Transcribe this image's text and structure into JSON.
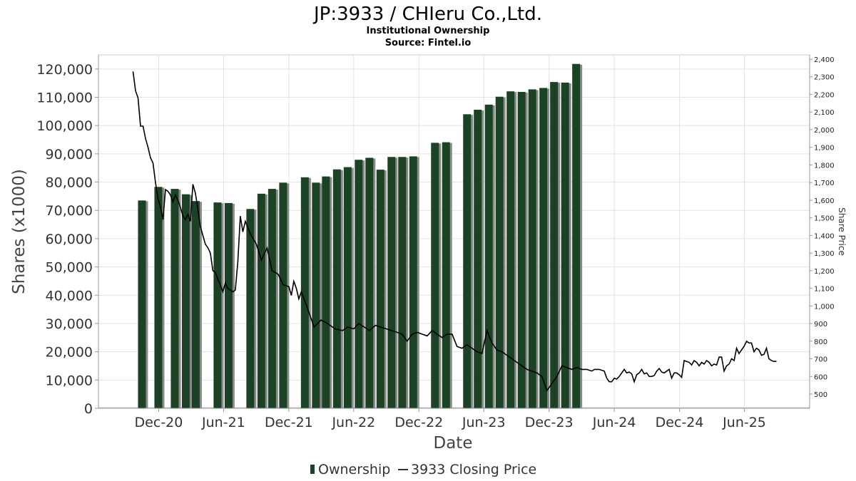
{
  "chart_data": {
    "type": "bar",
    "title": "JP:3933 / CHIeru Co.,Ltd.",
    "subtitle_lines": [
      "Institutional Ownership",
      "Source: Fintel.io"
    ],
    "xlabel": "Date",
    "ylabel": "Shares (x1000)",
    "y2label": "Share Price",
    "ylim": [
      0,
      125000
    ],
    "y2lim": [
      450,
      2400
    ],
    "grid": true,
    "legend_placement": "bottom-center",
    "x_ticks": [
      "Dec-20",
      "Jun-21",
      "Dec-21",
      "Jun-22",
      "Dec-22",
      "Jun-23",
      "Dec-23",
      "Jun-24",
      "Dec-24",
      "Jun-25"
    ],
    "y_ticks": [
      "0",
      "10,000",
      "20,000",
      "30,000",
      "40,000",
      "50,000",
      "60,000",
      "70,000",
      "80,000",
      "90,000",
      "100,000",
      "110,000",
      "120,000"
    ],
    "y2_ticks": [
      "500",
      "600",
      "700",
      "800",
      "900",
      "1,000",
      "1,100",
      "1,200",
      "1,300",
      "1,400",
      "1,500",
      "1,600",
      "1,700",
      "1,800",
      "1,900",
      "2,000",
      "2,100",
      "2,200",
      "2,300",
      "2,400"
    ],
    "series": [
      {
        "name": "Ownership",
        "type": "bar",
        "color": "#1c4226",
        "points": [
          {
            "x": "2020-10-15",
            "y": 73500
          },
          {
            "x": "2020-11-30",
            "y": 78300
          },
          {
            "x": "2021-01-15",
            "y": 77600
          },
          {
            "x": "2021-02-15",
            "y": 75700
          },
          {
            "x": "2021-03-15",
            "y": 73300
          },
          {
            "x": "2021-05-15",
            "y": 72800
          },
          {
            "x": "2021-06-15",
            "y": 72600
          },
          {
            "x": "2021-08-15",
            "y": 70500
          },
          {
            "x": "2021-09-15",
            "y": 75900
          },
          {
            "x": "2021-10-15",
            "y": 77600
          },
          {
            "x": "2021-11-15",
            "y": 79800
          },
          {
            "x": "2022-01-15",
            "y": 81700
          },
          {
            "x": "2022-02-15",
            "y": 79800
          },
          {
            "x": "2022-03-15",
            "y": 82000
          },
          {
            "x": "2022-04-15",
            "y": 84500
          },
          {
            "x": "2022-05-15",
            "y": 85300
          },
          {
            "x": "2022-06-15",
            "y": 87900
          },
          {
            "x": "2022-07-15",
            "y": 88600
          },
          {
            "x": "2022-08-15",
            "y": 84400
          },
          {
            "x": "2022-09-15",
            "y": 88900
          },
          {
            "x": "2022-10-15",
            "y": 88900
          },
          {
            "x": "2022-11-15",
            "y": 89100
          },
          {
            "x": "2023-01-15",
            "y": 93900
          },
          {
            "x": "2023-02-15",
            "y": 94100
          },
          {
            "x": "2023-04-15",
            "y": 104000
          },
          {
            "x": "2023-05-15",
            "y": 105600
          },
          {
            "x": "2023-06-15",
            "y": 107400
          },
          {
            "x": "2023-07-15",
            "y": 110200
          },
          {
            "x": "2023-08-15",
            "y": 112100
          },
          {
            "x": "2023-09-15",
            "y": 111900
          },
          {
            "x": "2023-10-15",
            "y": 112800
          },
          {
            "x": "2023-11-15",
            "y": 113300
          },
          {
            "x": "2023-12-15",
            "y": 115400
          },
          {
            "x": "2024-01-15",
            "y": 115200
          },
          {
            "x": "2024-02-15",
            "y": 121800
          }
        ]
      },
      {
        "name": "3933 Closing Price",
        "type": "line",
        "color": "#000000",
        "points": [
          {
            "x": "2020-09-20",
            "y": 2330
          },
          {
            "x": "2020-09-27",
            "y": 2220
          },
          {
            "x": "2020-10-04",
            "y": 2180
          },
          {
            "x": "2020-10-11",
            "y": 2020
          },
          {
            "x": "2020-10-18",
            "y": 2020
          },
          {
            "x": "2020-10-25",
            "y": 1950
          },
          {
            "x": "2020-11-01",
            "y": 1900
          },
          {
            "x": "2020-11-08",
            "y": 1840
          },
          {
            "x": "2020-11-15",
            "y": 1810
          },
          {
            "x": "2020-11-22",
            "y": 1700
          },
          {
            "x": "2020-11-29",
            "y": 1610
          },
          {
            "x": "2020-12-06",
            "y": 1560
          },
          {
            "x": "2020-12-13",
            "y": 1490
          },
          {
            "x": "2020-12-20",
            "y": 1660
          },
          {
            "x": "2020-12-27",
            "y": 1650
          },
          {
            "x": "2021-01-03",
            "y": 1630
          },
          {
            "x": "2021-01-10",
            "y": 1590
          },
          {
            "x": "2021-01-17",
            "y": 1630
          },
          {
            "x": "2021-01-24",
            "y": 1600
          },
          {
            "x": "2021-01-31",
            "y": 1560
          },
          {
            "x": "2021-02-07",
            "y": 1510
          },
          {
            "x": "2021-02-14",
            "y": 1490
          },
          {
            "x": "2021-02-21",
            "y": 1520
          },
          {
            "x": "2021-02-28",
            "y": 1480
          },
          {
            "x": "2021-03-07",
            "y": 1690
          },
          {
            "x": "2021-03-14",
            "y": 1640
          },
          {
            "x": "2021-03-21",
            "y": 1550
          },
          {
            "x": "2021-03-28",
            "y": 1450
          },
          {
            "x": "2021-04-04",
            "y": 1400
          },
          {
            "x": "2021-04-11",
            "y": 1350
          },
          {
            "x": "2021-04-18",
            "y": 1330
          },
          {
            "x": "2021-04-25",
            "y": 1300
          },
          {
            "x": "2021-05-02",
            "y": 1200
          },
          {
            "x": "2021-05-09",
            "y": 1190
          },
          {
            "x": "2021-05-16",
            "y": 1150
          },
          {
            "x": "2021-05-23",
            "y": 1120
          },
          {
            "x": "2021-05-30",
            "y": 1080
          },
          {
            "x": "2021-06-06",
            "y": 1130
          },
          {
            "x": "2021-06-13",
            "y": 1100
          },
          {
            "x": "2021-06-20",
            "y": 1090
          },
          {
            "x": "2021-06-27",
            "y": 1080
          },
          {
            "x": "2021-07-04",
            "y": 1090
          },
          {
            "x": "2021-07-11",
            "y": 1250
          },
          {
            "x": "2021-07-18",
            "y": 1510
          },
          {
            "x": "2021-07-25",
            "y": 1420
          },
          {
            "x": "2021-08-01",
            "y": 1480
          },
          {
            "x": "2021-08-15",
            "y": 1410
          },
          {
            "x": "2021-09-01",
            "y": 1350
          },
          {
            "x": "2021-09-15",
            "y": 1260
          },
          {
            "x": "2021-10-01",
            "y": 1330
          },
          {
            "x": "2021-10-15",
            "y": 1200
          },
          {
            "x": "2021-11-01",
            "y": 1180
          },
          {
            "x": "2021-11-15",
            "y": 1120
          },
          {
            "x": "2021-12-01",
            "y": 1110
          },
          {
            "x": "2021-12-08",
            "y": 1060
          },
          {
            "x": "2021-12-15",
            "y": 1140
          },
          {
            "x": "2021-12-22",
            "y": 1100
          },
          {
            "x": "2021-12-29",
            "y": 1040
          },
          {
            "x": "2022-01-05",
            "y": 1080
          },
          {
            "x": "2022-01-20",
            "y": 1000
          },
          {
            "x": "2022-02-10",
            "y": 880
          },
          {
            "x": "2022-03-01",
            "y": 920
          },
          {
            "x": "2022-03-20",
            "y": 900
          },
          {
            "x": "2022-04-10",
            "y": 870
          },
          {
            "x": "2022-05-01",
            "y": 860
          },
          {
            "x": "2022-05-15",
            "y": 880
          },
          {
            "x": "2022-06-01",
            "y": 870
          },
          {
            "x": "2022-06-15",
            "y": 900
          },
          {
            "x": "2022-07-01",
            "y": 880
          },
          {
            "x": "2022-07-15",
            "y": 860
          },
          {
            "x": "2022-08-01",
            "y": 890
          },
          {
            "x": "2022-08-15",
            "y": 880
          },
          {
            "x": "2022-09-01",
            "y": 870
          },
          {
            "x": "2022-09-15",
            "y": 860
          },
          {
            "x": "2022-10-01",
            "y": 850
          },
          {
            "x": "2022-10-15",
            "y": 840
          },
          {
            "x": "2022-10-29",
            "y": 800
          },
          {
            "x": "2022-11-12",
            "y": 840
          },
          {
            "x": "2022-11-26",
            "y": 850
          },
          {
            "x": "2022-12-10",
            "y": 840
          },
          {
            "x": "2022-12-24",
            "y": 830
          },
          {
            "x": "2023-01-07",
            "y": 860
          },
          {
            "x": "2023-01-21",
            "y": 840
          },
          {
            "x": "2023-02-04",
            "y": 820
          },
          {
            "x": "2023-02-18",
            "y": 840
          },
          {
            "x": "2023-03-04",
            "y": 840
          },
          {
            "x": "2023-03-18",
            "y": 770
          },
          {
            "x": "2023-04-01",
            "y": 760
          },
          {
            "x": "2023-04-15",
            "y": 780
          },
          {
            "x": "2023-04-29",
            "y": 760
          },
          {
            "x": "2023-05-13",
            "y": 740
          },
          {
            "x": "2023-05-27",
            "y": 730
          },
          {
            "x": "2023-06-10",
            "y": 860
          },
          {
            "x": "2023-06-24",
            "y": 790
          },
          {
            "x": "2023-07-08",
            "y": 750
          },
          {
            "x": "2023-07-22",
            "y": 740
          },
          {
            "x": "2023-08-05",
            "y": 720
          },
          {
            "x": "2023-08-19",
            "y": 700
          },
          {
            "x": "2023-09-02",
            "y": 680
          },
          {
            "x": "2023-09-16",
            "y": 660
          },
          {
            "x": "2023-09-30",
            "y": 640
          },
          {
            "x": "2023-10-14",
            "y": 630
          },
          {
            "x": "2023-10-28",
            "y": 620
          },
          {
            "x": "2023-11-11",
            "y": 600
          },
          {
            "x": "2023-11-25",
            "y": 520
          },
          {
            "x": "2023-12-09",
            "y": 560
          },
          {
            "x": "2023-12-23",
            "y": 600
          },
          {
            "x": "2024-01-06",
            "y": 660
          },
          {
            "x": "2024-01-20",
            "y": 650
          },
          {
            "x": "2024-02-03",
            "y": 640
          },
          {
            "x": "2024-02-17",
            "y": 650
          },
          {
            "x": "2024-03-02",
            "y": 640
          },
          {
            "x": "2024-03-16",
            "y": 640
          },
          {
            "x": "2024-03-30",
            "y": 630
          },
          {
            "x": "2024-04-06",
            "y": 640
          },
          {
            "x": "2024-04-13",
            "y": 640
          },
          {
            "x": "2024-04-20",
            "y": 640
          },
          {
            "x": "2024-04-27",
            "y": 635
          },
          {
            "x": "2024-05-04",
            "y": 630
          },
          {
            "x": "2024-05-11",
            "y": 590
          },
          {
            "x": "2024-05-18",
            "y": 570
          },
          {
            "x": "2024-05-25",
            "y": 570
          },
          {
            "x": "2024-06-01",
            "y": 590
          },
          {
            "x": "2024-06-08",
            "y": 585
          },
          {
            "x": "2024-06-15",
            "y": 600
          },
          {
            "x": "2024-06-22",
            "y": 620
          },
          {
            "x": "2024-06-29",
            "y": 640
          },
          {
            "x": "2024-07-06",
            "y": 620
          },
          {
            "x": "2024-07-13",
            "y": 625
          },
          {
            "x": "2024-07-20",
            "y": 615
          },
          {
            "x": "2024-07-27",
            "y": 570
          },
          {
            "x": "2024-08-03",
            "y": 610
          },
          {
            "x": "2024-08-10",
            "y": 620
          },
          {
            "x": "2024-08-17",
            "y": 640
          },
          {
            "x": "2024-08-24",
            "y": 615
          },
          {
            "x": "2024-08-31",
            "y": 620
          },
          {
            "x": "2024-09-07",
            "y": 600
          },
          {
            "x": "2024-09-14",
            "y": 600
          },
          {
            "x": "2024-09-21",
            "y": 605
          },
          {
            "x": "2024-09-28",
            "y": 630
          },
          {
            "x": "2024-10-05",
            "y": 645
          },
          {
            "x": "2024-10-12",
            "y": 625
          },
          {
            "x": "2024-10-19",
            "y": 620
          },
          {
            "x": "2024-10-26",
            "y": 630
          },
          {
            "x": "2024-11-02",
            "y": 640
          },
          {
            "x": "2024-11-09",
            "y": 590
          },
          {
            "x": "2024-11-16",
            "y": 620
          },
          {
            "x": "2024-11-23",
            "y": 620
          },
          {
            "x": "2024-11-30",
            "y": 610
          },
          {
            "x": "2024-12-07",
            "y": 595
          },
          {
            "x": "2024-12-14",
            "y": 690
          },
          {
            "x": "2024-12-21",
            "y": 685
          },
          {
            "x": "2024-12-28",
            "y": 680
          },
          {
            "x": "2025-01-04",
            "y": 665
          },
          {
            "x": "2025-01-11",
            "y": 690
          },
          {
            "x": "2025-01-18",
            "y": 680
          },
          {
            "x": "2025-01-25",
            "y": 660
          },
          {
            "x": "2025-02-01",
            "y": 680
          },
          {
            "x": "2025-02-08",
            "y": 670
          },
          {
            "x": "2025-02-15",
            "y": 690
          },
          {
            "x": "2025-02-22",
            "y": 680
          },
          {
            "x": "2025-03-01",
            "y": 660
          },
          {
            "x": "2025-03-08",
            "y": 670
          },
          {
            "x": "2025-03-15",
            "y": 665
          },
          {
            "x": "2025-03-22",
            "y": 710
          },
          {
            "x": "2025-03-29",
            "y": 710
          },
          {
            "x": "2025-04-05",
            "y": 630
          },
          {
            "x": "2025-04-12",
            "y": 660
          },
          {
            "x": "2025-04-19",
            "y": 670
          },
          {
            "x": "2025-04-26",
            "y": 700
          },
          {
            "x": "2025-05-03",
            "y": 690
          },
          {
            "x": "2025-05-10",
            "y": 760
          },
          {
            "x": "2025-05-17",
            "y": 730
          },
          {
            "x": "2025-05-24",
            "y": 750
          },
          {
            "x": "2025-05-31",
            "y": 770
          },
          {
            "x": "2025-06-07",
            "y": 800
          },
          {
            "x": "2025-06-14",
            "y": 790
          },
          {
            "x": "2025-06-21",
            "y": 790
          },
          {
            "x": "2025-06-28",
            "y": 740
          },
          {
            "x": "2025-07-05",
            "y": 760
          },
          {
            "x": "2025-07-12",
            "y": 750
          },
          {
            "x": "2025-07-19",
            "y": 720
          },
          {
            "x": "2025-07-26",
            "y": 725
          },
          {
            "x": "2025-08-02",
            "y": 760
          },
          {
            "x": "2025-08-09",
            "y": 700
          },
          {
            "x": "2025-08-16",
            "y": 690
          },
          {
            "x": "2025-08-23",
            "y": 685
          },
          {
            "x": "2025-08-30",
            "y": 685
          }
        ]
      }
    ]
  }
}
